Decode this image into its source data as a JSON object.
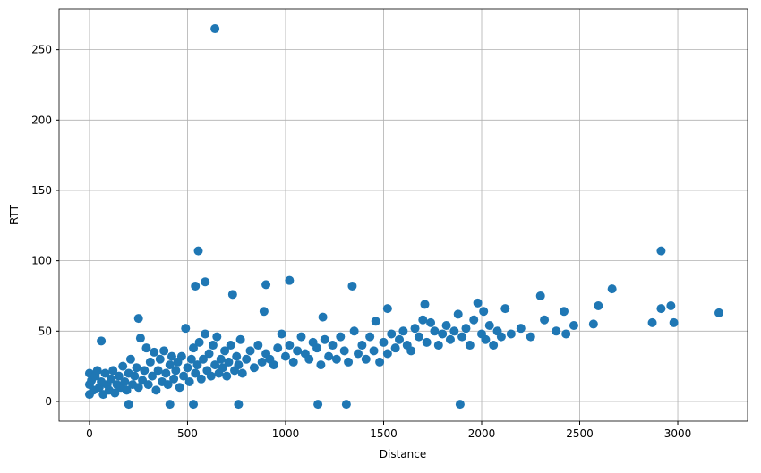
{
  "chart_data": {
    "type": "scatter",
    "x_label": "Distance",
    "y_label": "RTT",
    "color": "#1f77b4",
    "grid": true,
    "xlim": [
      -155,
      3356
    ],
    "ylim": [
      -14,
      279
    ],
    "xticks": [
      0,
      500,
      1000,
      1500,
      2000,
      2500,
      3000
    ],
    "yticks": [
      0,
      50,
      100,
      150,
      200,
      250
    ],
    "x": [
      0,
      0,
      0,
      10,
      20,
      30,
      40,
      50,
      60,
      70,
      80,
      90,
      100,
      110,
      120,
      130,
      140,
      150,
      160,
      170,
      180,
      190,
      200,
      210,
      220,
      230,
      240,
      250,
      260,
      270,
      280,
      290,
      300,
      310,
      320,
      330,
      340,
      350,
      360,
      370,
      380,
      390,
      400,
      410,
      420,
      430,
      440,
      450,
      460,
      470,
      480,
      490,
      500,
      510,
      520,
      530,
      540,
      550,
      560,
      570,
      580,
      590,
      600,
      610,
      620,
      630,
      640,
      650,
      660,
      670,
      680,
      690,
      700,
      710,
      720,
      740,
      750,
      760,
      770,
      780,
      800,
      820,
      840,
      860,
      880,
      890,
      900,
      920,
      940,
      960,
      980,
      1000,
      1020,
      1040,
      1060,
      1080,
      1100,
      1120,
      1140,
      1160,
      1180,
      1200,
      1220,
      1240,
      1260,
      1280,
      1300,
      1320,
      1350,
      1370,
      1390,
      1410,
      1430,
      1450,
      1480,
      1500,
      1520,
      1540,
      1560,
      1580,
      1600,
      1620,
      1640,
      1660,
      1680,
      1700,
      1710,
      1720,
      1740,
      1760,
      1780,
      1800,
      1820,
      1840,
      1860,
      1880,
      1900,
      1920,
      1940,
      1960,
      1980,
      2000,
      2010,
      2020,
      2040,
      2060,
      2080,
      2100,
      2120,
      2150,
      2200,
      2250,
      2320,
      2380,
      2420,
      2470,
      2430,
      640,
      555,
      2915,
      590,
      1020,
      540,
      900,
      1340,
      730,
      2665,
      2300,
      250,
      1190,
      1460,
      1520,
      2595,
      2965,
      3210,
      2915,
      2870,
      2980,
      2570,
      410,
      530,
      760,
      1165,
      1310,
      1890,
      200,
      60
    ],
    "y": [
      5,
      12,
      20,
      15,
      8,
      18,
      22,
      10,
      14,
      5,
      20,
      12,
      8,
      16,
      22,
      6,
      12,
      18,
      10,
      25,
      14,
      8,
      20,
      30,
      12,
      18,
      24,
      10,
      45,
      15,
      22,
      38,
      12,
      28,
      18,
      35,
      8,
      22,
      30,
      14,
      36,
      20,
      12,
      26,
      32,
      16,
      22,
      28,
      10,
      32,
      18,
      52,
      24,
      14,
      30,
      38,
      20,
      26,
      42,
      16,
      30,
      48,
      22,
      34,
      18,
      40,
      26,
      46,
      20,
      30,
      24,
      36,
      18,
      28,
      40,
      22,
      32,
      26,
      44,
      20,
      30,
      36,
      24,
      40,
      28,
      64,
      34,
      30,
      26,
      38,
      48,
      32,
      40,
      28,
      36,
      46,
      34,
      30,
      42,
      38,
      26,
      44,
      32,
      40,
      30,
      46,
      36,
      28,
      50,
      34,
      40,
      30,
      46,
      36,
      28,
      42,
      34,
      48,
      38,
      44,
      50,
      40,
      36,
      52,
      46,
      58,
      69,
      42,
      56,
      50,
      40,
      48,
      54,
      44,
      50,
      62,
      46,
      52,
      40,
      58,
      70,
      48,
      64,
      44,
      54,
      40,
      50,
      46,
      66,
      48,
      52,
      46,
      58,
      50,
      64,
      54,
      48,
      265,
      107,
      107,
      85,
      86,
      82,
      83,
      82,
      76,
      80,
      75,
      59,
      60,
      57,
      66,
      68,
      68,
      63,
      66,
      56,
      56,
      55,
      -2,
      -2,
      -2,
      -2,
      -2,
      -2,
      -2,
      43
    ]
  }
}
